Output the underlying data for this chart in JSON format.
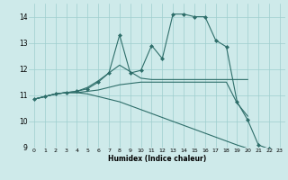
{
  "xlabel": "Humidex (Indice chaleur)",
  "background_color": "#ceeaea",
  "grid_color": "#9ecece",
  "line_color": "#2e6e6a",
  "xlim": [
    -0.5,
    23.5
  ],
  "ylim": [
    9,
    14.5
  ],
  "yticks": [
    9,
    10,
    11,
    12,
    13,
    14
  ],
  "xticks": [
    0,
    1,
    2,
    3,
    4,
    5,
    6,
    7,
    8,
    9,
    10,
    11,
    12,
    13,
    14,
    15,
    16,
    17,
    18,
    19,
    20,
    21,
    22,
    23
  ],
  "line1_x": [
    0,
    1,
    2,
    3,
    4,
    5,
    6,
    7,
    8,
    9,
    10,
    11,
    12,
    13,
    14,
    15,
    16,
    17,
    18,
    19,
    20,
    21,
    22
  ],
  "line1_y": [
    10.85,
    10.95,
    11.05,
    11.1,
    11.1,
    11.05,
    10.95,
    10.85,
    10.75,
    10.6,
    10.45,
    10.3,
    10.15,
    10.0,
    9.85,
    9.7,
    9.55,
    9.4,
    9.25,
    9.1,
    8.97,
    8.85,
    8.75
  ],
  "line2_x": [
    0,
    1,
    2,
    3,
    4,
    5,
    6,
    7,
    8,
    9,
    10,
    11,
    12,
    13,
    14,
    15,
    16,
    17,
    18,
    19,
    20
  ],
  "line2_y": [
    10.85,
    10.95,
    11.05,
    11.1,
    11.1,
    11.15,
    11.2,
    11.3,
    11.4,
    11.45,
    11.5,
    11.5,
    11.5,
    11.5,
    11.5,
    11.5,
    11.5,
    11.5,
    11.5,
    10.7,
    10.2
  ],
  "line3_x": [
    0,
    1,
    2,
    3,
    4,
    5,
    6,
    7,
    8,
    9,
    10,
    11,
    12,
    13,
    14,
    15,
    16,
    17,
    18,
    19,
    20
  ],
  "line3_y": [
    10.85,
    10.95,
    11.05,
    11.1,
    11.15,
    11.3,
    11.55,
    11.85,
    12.15,
    11.9,
    11.65,
    11.6,
    11.6,
    11.6,
    11.6,
    11.6,
    11.6,
    11.6,
    11.6,
    11.6,
    11.6
  ],
  "line4_x": [
    0,
    1,
    2,
    3,
    4,
    5,
    6,
    7,
    8,
    9,
    10,
    11,
    12,
    13,
    14,
    15,
    16,
    17,
    18,
    19,
    20,
    21,
    22
  ],
  "line4_y": [
    10.85,
    10.95,
    11.05,
    11.1,
    11.15,
    11.25,
    11.5,
    11.85,
    13.3,
    11.85,
    11.95,
    12.9,
    12.4,
    14.1,
    14.1,
    14.0,
    14.0,
    13.1,
    12.85,
    10.75,
    10.05,
    9.1,
    8.95
  ]
}
